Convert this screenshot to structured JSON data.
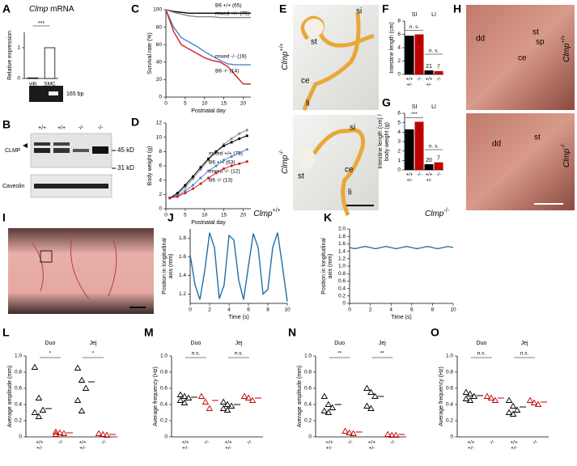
{
  "panel_letters": [
    "A",
    "B",
    "C",
    "D",
    "E",
    "F",
    "G",
    "H",
    "I",
    "J",
    "K",
    "L",
    "M",
    "N",
    "O"
  ],
  "gel_label": "165 bp",
  "blot": {
    "lanes": [
      "+/+",
      "+/+",
      "-/-",
      "-/-"
    ],
    "top_label": "CLMP",
    "top_marker": "45 kD",
    "bottom_marker": "31 kD",
    "bottom_label": "Caveolin"
  },
  "photo_e": {
    "genotype_top": {
      "gene": "Clmp",
      "allele": "+/+"
    },
    "genotype_bottom": {
      "gene": "Clmp",
      "allele": "-/-"
    },
    "top_labels": [
      "st",
      "si",
      "ce",
      "li"
    ],
    "bottom_labels": [
      "si",
      "st",
      "ce",
      "li"
    ]
  },
  "photo_h": {
    "genotype_top": {
      "gene": "Clmp",
      "allele": "+/+"
    },
    "genotype_bottom": {
      "gene": "Clmp",
      "allele": "-/-"
    },
    "top_labels": [
      "dd",
      "st",
      "sp",
      "ce"
    ],
    "bottom_labels": [
      "dd",
      "st"
    ]
  },
  "chart_data": [
    {
      "type": "bar",
      "title_gene": "Clmp",
      "title": "mRNA",
      "y_label": [
        "Relative expression"
      ],
      "categories": [
        "villi",
        "SMC"
      ],
      "values": [
        0.02,
        1.0
      ],
      "color": "#ffffff",
      "ylim": [
        0,
        1.5
      ],
      "yticks": [
        0,
        1
      ],
      "annotation": "***"
    },
    {
      "type": "line",
      "y_label": [
        "Survival rate (%)"
      ],
      "x_label": "Postnatal day",
      "x": [
        0,
        2,
        4,
        6,
        8,
        10,
        12,
        14,
        16,
        18,
        20,
        22
      ],
      "xlim": [
        0,
        22
      ],
      "xticks": [
        0,
        5,
        10,
        15,
        20
      ],
      "ylim": [
        0,
        100
      ],
      "yticks": [
        0,
        20,
        40,
        60,
        80,
        100
      ],
      "series": [
        {
          "name": "B6 +/+ (65)",
          "color": "#000000",
          "values": [
            100,
            98,
            97,
            96,
            96,
            96,
            96,
            96,
            96,
            96,
            96,
            96
          ]
        },
        {
          "name": "mixed +/+ (75)",
          "color": "#888888",
          "values": [
            100,
            97,
            95,
            93,
            92,
            92,
            92,
            91,
            91,
            91,
            91,
            91
          ]
        },
        {
          "name": "mixed -/- (19)",
          "color": "#4a86c8",
          "values": [
            100,
            80,
            68,
            63,
            58,
            52,
            47,
            42,
            38,
            37,
            37,
            37
          ]
        },
        {
          "name": "B6 -/- (14)",
          "color": "#d02020",
          "values": [
            100,
            75,
            60,
            55,
            50,
            45,
            42,
            40,
            35,
            25,
            15,
            15
          ]
        }
      ]
    },
    {
      "type": "line",
      "markers": true,
      "y_label": [
        "Body weight (g)"
      ],
      "x_label": "Postnatal day",
      "x": [
        1,
        3,
        5,
        7,
        9,
        11,
        13,
        15,
        17,
        19,
        21
      ],
      "xlim": [
        0,
        22
      ],
      "xticks": [
        0,
        5,
        10,
        15,
        20
      ],
      "ylim": [
        0,
        12
      ],
      "yticks": [
        0,
        2,
        4,
        6,
        8,
        10,
        12
      ],
      "series": [
        {
          "name": "mixed +/+ (70)",
          "color": "#888888",
          "values": [
            1.5,
            2.0,
            3.0,
            4.2,
            5.5,
            6.8,
            8.0,
            9.0,
            9.8,
            10.5,
            11.0
          ]
        },
        {
          "name": "B6 +/+ (63)",
          "color": "#000000",
          "values": [
            1.5,
            2.2,
            3.3,
            4.5,
            5.8,
            7.0,
            8.0,
            8.8,
            9.3,
            9.8,
            10.2
          ]
        },
        {
          "name": "mixed -/- (12)",
          "color": "#4a86c8",
          "values": [
            1.5,
            1.8,
            2.5,
            3.3,
            4.3,
            5.3,
            6.0,
            6.8,
            7.3,
            7.8,
            8.3
          ]
        },
        {
          "name": "B6 -/- (13)",
          "color": "#d02020",
          "values": [
            1.5,
            1.7,
            2.2,
            2.8,
            3.5,
            4.3,
            5.0,
            5.6,
            6.0,
            6.3,
            6.6
          ]
        }
      ]
    },
    {
      "type": "groupbar",
      "y_label": [
        "Intestine length (cm)"
      ],
      "groups": [
        "SI",
        "LI"
      ],
      "annotations": [
        "n. s.",
        "n. s."
      ],
      "ylim": [
        0,
        8
      ],
      "yticks": [
        0,
        2,
        4,
        6,
        8
      ],
      "series": [
        {
          "color": "#000000",
          "values": [
            5.8,
            0.6
          ],
          "n": [
            21,
            21
          ],
          "xlabel": [
            "+/+",
            "+/-"
          ]
        },
        {
          "color": "#c00000",
          "values": [
            6.0,
            0.5
          ],
          "n": [
            7,
            7
          ],
          "xlabel": [
            "-/-"
          ]
        }
      ]
    },
    {
      "type": "groupbar",
      "y_label": [
        "Intestine length (cm) /",
        "body weight (g)"
      ],
      "groups": [
        "SI",
        "LI"
      ],
      "annotations": [
        "***",
        "n. s."
      ],
      "ylim": [
        0,
        6
      ],
      "yticks": [
        0,
        1,
        2,
        3,
        4,
        5,
        6
      ],
      "series": [
        {
          "color": "#000000",
          "values": [
            4.3,
            0.6
          ],
          "n": [
            20,
            20
          ],
          "xlabel": [
            "+/+",
            "+/-"
          ]
        },
        {
          "color": "#c00000",
          "values": [
            5.1,
            0.8
          ],
          "n": [
            7,
            7
          ],
          "xlabel": [
            "-/-"
          ]
        }
      ]
    },
    {
      "type": "line",
      "title": "Clmp",
      "title_superscript": "+/+",
      "y_label": [
        "Position in longitudinal",
        "axis (mm)"
      ],
      "x_label": "Time (s)",
      "x": [
        0,
        0.5,
        1,
        1.5,
        2,
        2.5,
        3,
        3.5,
        4,
        4.5,
        5,
        5.5,
        6,
        6.5,
        7,
        7.5,
        8,
        8.5,
        9,
        9.5,
        10
      ],
      "xlim": [
        0,
        10
      ],
      "xticks": [
        0,
        2,
        4,
        6,
        8,
        10
      ],
      "ylim": [
        1.1,
        1.9
      ],
      "yticks": [
        1.2,
        1.4,
        1.6,
        1.8
      ],
      "series": [
        {
          "color": "#1f6fa8",
          "values": [
            1.62,
            1.3,
            1.14,
            1.45,
            1.86,
            1.7,
            1.15,
            1.3,
            1.83,
            1.78,
            1.35,
            1.14,
            1.5,
            1.85,
            1.7,
            1.2,
            1.25,
            1.7,
            1.86,
            1.5,
            1.12
          ]
        }
      ]
    },
    {
      "type": "line",
      "title": "Clmp",
      "title_superscript": "-/-",
      "y_label": [
        "Position in longitudinal",
        "axis (mm)"
      ],
      "x_label": "Time (s)",
      "x": [
        0,
        0.5,
        1,
        1.5,
        2,
        2.5,
        3,
        3.5,
        4,
        4.5,
        5,
        5.5,
        6,
        6.5,
        7,
        7.5,
        8,
        8.5,
        9,
        9.5,
        10
      ],
      "xlim": [
        0,
        10
      ],
      "xticks": [
        0,
        2,
        4,
        6,
        8,
        10
      ],
      "ylim": [
        0,
        2
      ],
      "yticks": [
        0,
        0.2,
        0.4,
        0.6,
        0.8,
        {
          "value": 1,
          "label": "1.0"
        },
        1.2,
        1.4,
        1.6,
        1.8,
        {
          "value": 2,
          "label": "2.0"
        }
      ],
      "series": [
        {
          "color": "#1f6fa8",
          "values": [
            1.5,
            1.47,
            1.5,
            1.53,
            1.5,
            1.47,
            1.5,
            1.53,
            1.5,
            1.47,
            1.5,
            1.53,
            1.5,
            1.47,
            1.5,
            1.53,
            1.5,
            1.47,
            1.5,
            1.53,
            1.5
          ]
        }
      ]
    },
    {
      "type": "dotplot",
      "y_label": [
        "Average amplitude (mm)"
      ],
      "groups": [
        "Duo",
        "Jej"
      ],
      "annotations": [
        "*",
        "*"
      ],
      "ylim": [
        0,
        1
      ],
      "yticks": [
        0,
        0.2,
        0.4,
        0.6,
        0.8,
        {
          "value": 1,
          "label": "1.0"
        }
      ],
      "xlabels": [
        [
          "+/+",
          "+/-"
        ],
        [
          "-/-"
        ],
        [
          "+/+",
          "+/-"
        ],
        [
          "-/-"
        ]
      ],
      "colors": [
        "#000000",
        "#c00000",
        "#000000",
        "#c00000"
      ],
      "points": [
        [
          0.86,
          0.48,
          0.33,
          0.3,
          0.25
        ],
        [
          0.06,
          0.05,
          0.04,
          0.03
        ],
        [
          0.85,
          0.7,
          0.6,
          0.45,
          0.32
        ],
        [
          0.04,
          0.03,
          0.02
        ]
      ],
      "means": [
        0.35,
        0.05,
        0.68,
        0.03
      ]
    },
    {
      "type": "dotplot",
      "y_label": [
        "Average frequency (Hz)"
      ],
      "groups": [
        "Duo",
        "Jej"
      ],
      "annotations": [
        "n.s.",
        "n.s."
      ],
      "ylim": [
        0,
        1
      ],
      "yticks": [
        0,
        0.2,
        0.4,
        0.6,
        0.8,
        {
          "value": 1,
          "label": "1.0"
        }
      ],
      "xlabels": [
        [
          "+/+",
          "+/-"
        ],
        [
          "-/-"
        ],
        [
          "+/+",
          "+/-"
        ],
        [
          "-/-"
        ]
      ],
      "colors": [
        "#000000",
        "#c00000",
        "#000000",
        "#c00000"
      ],
      "points": [
        [
          0.52,
          0.5,
          0.48,
          0.45,
          0.42
        ],
        [
          0.5,
          0.43,
          0.35
        ],
        [
          0.43,
          0.4,
          0.38,
          0.35,
          0.33
        ],
        [
          0.5,
          0.48,
          0.45
        ]
      ],
      "means": [
        0.49,
        0.45,
        0.4,
        0.48
      ]
    },
    {
      "type": "dotplot",
      "y_label": [
        "Average amplitude (mm)"
      ],
      "groups": [
        "Duo",
        "Jej"
      ],
      "annotations": [
        "**",
        "**"
      ],
      "ylim": [
        0,
        1
      ],
      "yticks": [
        0,
        0.2,
        0.4,
        0.6,
        0.8,
        {
          "value": 1,
          "label": "1.0"
        }
      ],
      "xlabels": [
        [
          "+/+",
          "+/-"
        ],
        [
          "-/-"
        ],
        [
          "+/+",
          "+/-"
        ],
        [
          "-/-"
        ]
      ],
      "colors": [
        "#000000",
        "#c00000",
        "#000000",
        "#c00000"
      ],
      "points": [
        [
          0.5,
          0.4,
          0.36,
          0.32,
          0.3
        ],
        [
          0.07,
          0.05,
          0.04
        ],
        [
          0.6,
          0.55,
          0.5,
          0.38,
          0.35
        ],
        [
          0.03,
          0.02,
          0.02
        ]
      ],
      "means": [
        0.4,
        0.06,
        0.5,
        0.03
      ]
    },
    {
      "type": "dotplot",
      "y_label": [
        "Average frequency (Hz)"
      ],
      "groups": [
        "Duo",
        "Jej"
      ],
      "annotations": [
        "n.s.",
        "n.s."
      ],
      "ylim": [
        0,
        1
      ],
      "yticks": [
        0,
        0.2,
        0.4,
        0.6,
        0.8,
        {
          "value": 1,
          "label": "1.0"
        }
      ],
      "xlabels": [
        [
          "+/+",
          "+/-"
        ],
        [
          "-/-"
        ],
        [
          "+/+",
          "+/-"
        ],
        [
          "-/-"
        ]
      ],
      "colors": [
        "#000000",
        "#c00000",
        "#000000",
        "#c00000"
      ],
      "points": [
        [
          0.55,
          0.53,
          0.5,
          0.47,
          0.45
        ],
        [
          0.5,
          0.48,
          0.45
        ],
        [
          0.45,
          0.38,
          0.33,
          0.3,
          0.28
        ],
        [
          0.45,
          0.42,
          0.4
        ]
      ],
      "means": [
        0.51,
        0.48,
        0.37,
        0.43
      ]
    }
  ]
}
